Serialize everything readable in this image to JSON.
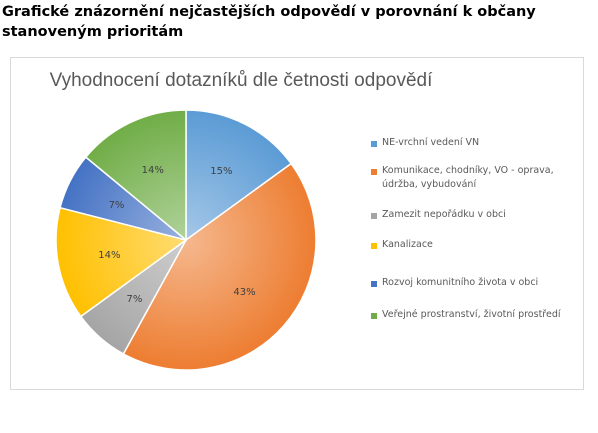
{
  "heading": "Grafické znázornění nejčastějších odpovědí v porovnání k občany stanoveným prioritám",
  "chart_data": {
    "type": "pie",
    "title": "Vyhodnocení dotazníků dle četnosti odpovědí",
    "legend_position": "right",
    "slices": [
      {
        "label": "NE-vrchní vedení VN",
        "value": 15,
        "data_label": "15%",
        "color": "#5b9bd5"
      },
      {
        "label": "Komunikace, chodníky, VO - oprava, údržba, vybudování",
        "value": 43,
        "data_label": "43%",
        "color": "#ed7d31"
      },
      {
        "label": "Zamezit nepořádku v obci",
        "value": 7,
        "data_label": "7%",
        "color": "#a5a5a5"
      },
      {
        "label": "Kanalizace",
        "value": 14,
        "data_label": "14%",
        "color": "#ffc000"
      },
      {
        "label": "Rozvoj komunitního života v obci",
        "value": 7,
        "data_label": "7%",
        "color": "#4472c4"
      },
      {
        "label": "Veřejné prostranství, životní prostředí",
        "value": 14,
        "data_label": "14%",
        "color": "#70ad47"
      }
    ]
  }
}
